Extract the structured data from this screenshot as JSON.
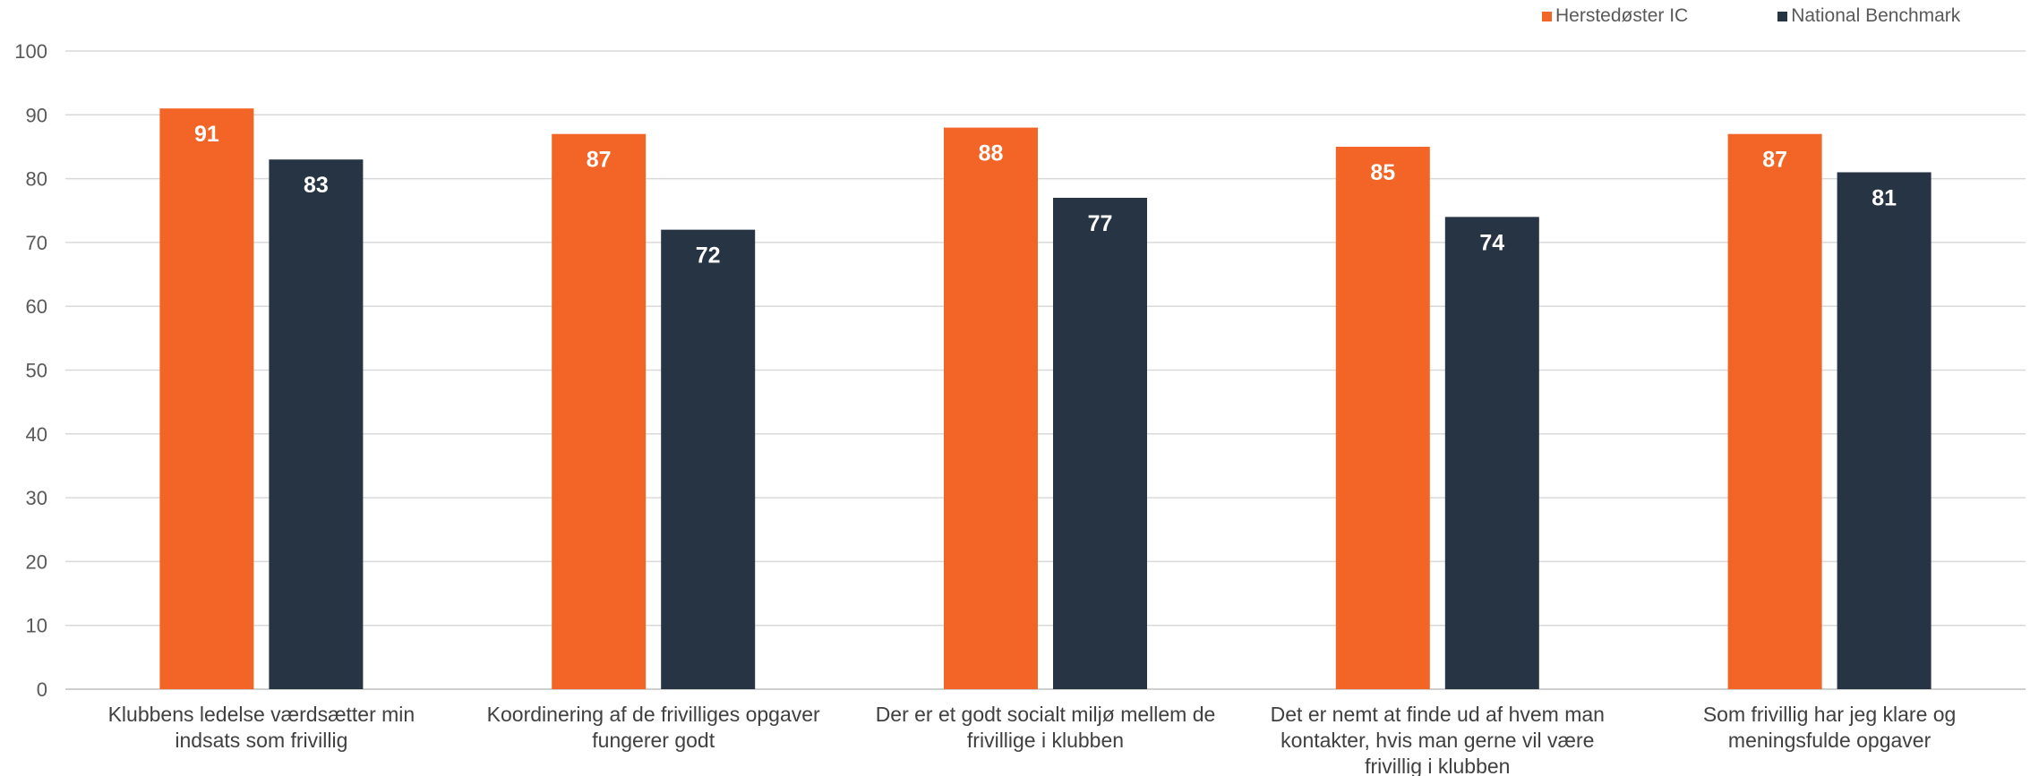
{
  "chart_data": {
    "type": "bar",
    "categories": [
      [
        "Klubbens ledelse værdsætter min",
        "indsats som frivillig"
      ],
      [
        "Koordinering af de frivilliges opgaver",
        "fungerer godt"
      ],
      [
        "Der er et godt socialt miljø mellem de",
        "frivillige i klubben"
      ],
      [
        "Det er nemt at finde ud af hvem man",
        "kontakter, hvis man gerne vil være",
        "frivillig i klubben"
      ],
      [
        "Som frivillig har jeg klare og",
        "meningsfulde opgaver"
      ]
    ],
    "series": [
      {
        "name": "Herstedøster IC",
        "color": "#F26527",
        "values": [
          91,
          87,
          88,
          85,
          87
        ]
      },
      {
        "name": "National Benchmark",
        "color": "#263444",
        "values": [
          83,
          72,
          77,
          74,
          81
        ]
      }
    ],
    "ylim": [
      0,
      100
    ],
    "yticks": [
      0,
      10,
      20,
      30,
      40,
      50,
      60,
      70,
      80,
      90,
      100
    ],
    "grid": true,
    "legend_position": "top-right",
    "data_labels": true
  }
}
